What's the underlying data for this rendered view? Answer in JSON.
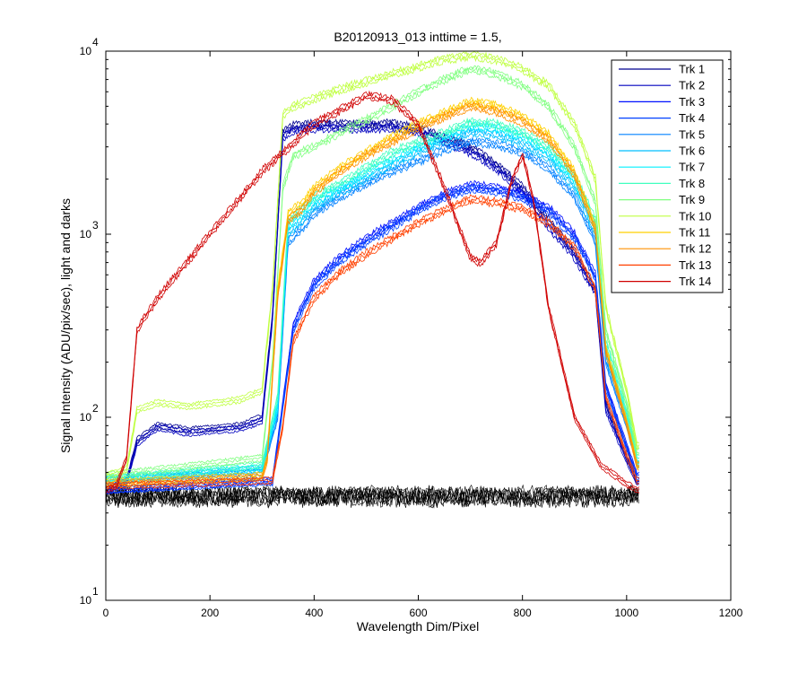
{
  "chart_data": {
    "type": "line",
    "title": "B20120913_013 inttime = 1.5,",
    "xlabel": "Wavelength Dim/Pixel",
    "ylabel": "Signal Intensity (ADU/pix/sec), light and darks",
    "xlim": [
      0,
      1200
    ],
    "ylim": [
      10,
      10000
    ],
    "yscale": "log",
    "x_ticks": [
      0,
      200,
      400,
      600,
      800,
      1000,
      1200
    ],
    "x_tick_labels": [
      "0",
      "200",
      "400",
      "600",
      "800",
      "1000",
      "1200"
    ],
    "y_ticks": [
      10,
      100,
      1000,
      10000
    ],
    "y_tick_bases": [
      "10",
      "10",
      "10",
      "10"
    ],
    "y_tick_exponents": [
      "1",
      "2",
      "3",
      "4"
    ],
    "legend_position": "top-right",
    "series": [
      {
        "name": "Trk 1",
        "color": "#00008f",
        "x": [
          0,
          40,
          60,
          100,
          160,
          260,
          300,
          320,
          340,
          360,
          400,
          500,
          550,
          600,
          650,
          700,
          750,
          800,
          850,
          900,
          940,
          960,
          1000,
          1020
        ],
        "y": [
          40,
          45,
          75,
          90,
          85,
          90,
          100,
          360,
          3600,
          3900,
          4000,
          4000,
          4000,
          3800,
          3400,
          3000,
          2400,
          1800,
          1200,
          800,
          500,
          120,
          60,
          45
        ]
      },
      {
        "name": "Trk 2",
        "color": "#0000bf",
        "x": [
          0,
          40,
          60,
          100,
          160,
          260,
          300,
          320,
          340,
          360,
          400,
          500,
          550,
          600,
          650,
          700,
          750,
          800,
          850,
          900,
          940,
          960,
          1000,
          1020
        ],
        "y": [
          40,
          44,
          72,
          88,
          82,
          87,
          96,
          340,
          3400,
          3700,
          3800,
          3800,
          3800,
          3600,
          3200,
          2800,
          2300,
          1700,
          1100,
          750,
          480,
          110,
          58,
          44
        ]
      },
      {
        "name": "Trk 3",
        "color": "#0010ff",
        "x": [
          0,
          300,
          320,
          340,
          360,
          400,
          450,
          500,
          550,
          600,
          650,
          700,
          750,
          800,
          850,
          900,
          940,
          960,
          1000,
          1020
        ],
        "y": [
          40,
          45,
          45,
          120,
          320,
          550,
          750,
          950,
          1150,
          1400,
          1650,
          1850,
          1800,
          1650,
          1400,
          1000,
          600,
          150,
          70,
          48
        ]
      },
      {
        "name": "Trk 4",
        "color": "#0040ff",
        "x": [
          0,
          300,
          320,
          340,
          360,
          400,
          450,
          500,
          550,
          600,
          650,
          700,
          750,
          800,
          850,
          900,
          940,
          960,
          1000,
          1020
        ],
        "y": [
          40,
          44,
          44,
          115,
          300,
          520,
          720,
          900,
          1100,
          1350,
          1600,
          1780,
          1720,
          1580,
          1340,
          950,
          580,
          145,
          68,
          47
        ]
      },
      {
        "name": "Trk 5",
        "color": "#0080ff",
        "x": [
          0,
          300,
          330,
          350,
          380,
          400,
          450,
          500,
          550,
          600,
          650,
          700,
          750,
          800,
          850,
          900,
          940,
          960,
          1000,
          1020
        ],
        "y": [
          45,
          50,
          100,
          900,
          1100,
          1300,
          1600,
          1900,
          2200,
          2500,
          2900,
          3200,
          3100,
          2800,
          2300,
          1600,
          900,
          200,
          90,
          55
        ]
      },
      {
        "name": "Trk 6",
        "color": "#00bfff",
        "x": [
          0,
          300,
          330,
          350,
          380,
          400,
          450,
          500,
          550,
          600,
          650,
          700,
          750,
          800,
          850,
          900,
          940,
          960,
          1000,
          1020
        ],
        "y": [
          45,
          52,
          110,
          1000,
          1200,
          1400,
          1700,
          2000,
          2400,
          2800,
          3200,
          3600,
          3500,
          3100,
          2600,
          1800,
          1000,
          220,
          95,
          56
        ]
      },
      {
        "name": "Trk 7",
        "color": "#00f0ff",
        "x": [
          0,
          300,
          330,
          350,
          380,
          400,
          450,
          500,
          550,
          600,
          650,
          700,
          750,
          800,
          850,
          900,
          940,
          960,
          1000,
          1020
        ],
        "y": [
          46,
          53,
          115,
          1100,
          1300,
          1500,
          1800,
          2150,
          2600,
          3000,
          3400,
          3900,
          3800,
          3400,
          2800,
          1950,
          1100,
          240,
          100,
          58
        ]
      },
      {
        "name": "Trk 8",
        "color": "#40ffbf",
        "x": [
          0,
          300,
          330,
          350,
          380,
          400,
          450,
          500,
          550,
          600,
          650,
          700,
          750,
          800,
          850,
          900,
          940,
          960,
          1000,
          1020
        ],
        "y": [
          46,
          55,
          130,
          1200,
          1400,
          1600,
          1900,
          2300,
          2800,
          3200,
          3600,
          4100,
          4000,
          3600,
          3000,
          2100,
          1200,
          260,
          110,
          60
        ]
      },
      {
        "name": "Trk 9",
        "color": "#80ff80",
        "x": [
          0,
          300,
          320,
          340,
          360,
          400,
          450,
          500,
          550,
          600,
          650,
          700,
          750,
          800,
          850,
          900,
          940,
          960,
          1000,
          1020
        ],
        "y": [
          48,
          60,
          200,
          1800,
          2700,
          3000,
          3600,
          4200,
          5000,
          6000,
          7000,
          8000,
          7500,
          6500,
          5000,
          3000,
          1500,
          300,
          120,
          65
        ]
      },
      {
        "name": "Trk 10",
        "color": "#bfff40",
        "x": [
          0,
          40,
          60,
          100,
          160,
          260,
          300,
          320,
          340,
          360,
          400,
          450,
          500,
          550,
          600,
          650,
          700,
          750,
          800,
          850,
          900,
          940,
          960,
          1000,
          1020
        ],
        "y": [
          48,
          52,
          110,
          120,
          115,
          125,
          140,
          500,
          4500,
          5000,
          5500,
          6200,
          6800,
          7500,
          8200,
          9000,
          9500,
          9000,
          8000,
          6500,
          4000,
          2000,
          400,
          140,
          70
        ]
      },
      {
        "name": "Trk 11",
        "color": "#ffd000",
        "x": [
          0,
          300,
          310,
          330,
          350,
          380,
          400,
          450,
          500,
          550,
          600,
          650,
          700,
          750,
          800,
          850,
          900,
          940,
          960,
          1000,
          1020
        ],
        "y": [
          44,
          48,
          60,
          500,
          1300,
          1500,
          1800,
          2300,
          2800,
          3400,
          4000,
          4600,
          5300,
          5000,
          4400,
          3500,
          2200,
          1100,
          240,
          95,
          55
        ]
      },
      {
        "name": "Trk 12",
        "color": "#ff9000",
        "x": [
          0,
          300,
          310,
          330,
          350,
          380,
          400,
          450,
          500,
          550,
          600,
          650,
          700,
          750,
          800,
          850,
          900,
          940,
          960,
          1000,
          1020
        ],
        "y": [
          43,
          47,
          58,
          450,
          1200,
          1400,
          1700,
          2200,
          2700,
          3200,
          3800,
          4400,
          5000,
          4700,
          4100,
          3300,
          2100,
          1050,
          230,
          92,
          54
        ]
      },
      {
        "name": "Trk 13",
        "color": "#ff4000",
        "x": [
          0,
          300,
          320,
          340,
          360,
          400,
          450,
          500,
          550,
          600,
          650,
          700,
          750,
          800,
          850,
          900,
          940,
          960,
          1000,
          1020
        ],
        "y": [
          42,
          45,
          45,
          90,
          260,
          450,
          620,
          780,
          950,
          1150,
          1350,
          1550,
          1500,
          1380,
          1150,
          850,
          500,
          130,
          62,
          45
        ]
      },
      {
        "name": "Trk 14",
        "color": "#d00000",
        "x": [
          0,
          20,
          40,
          60,
          100,
          200,
          300,
          400,
          500,
          550,
          600,
          650,
          700,
          720,
          750,
          780,
          800,
          820,
          850,
          900,
          950,
          1000,
          1020
        ],
        "y": [
          40,
          42,
          60,
          300,
          450,
          1000,
          2200,
          4000,
          5700,
          5400,
          4000,
          1800,
          750,
          700,
          900,
          2000,
          2700,
          1600,
          400,
          100,
          55,
          43,
          40
        ]
      }
    ],
    "dark_series": {
      "name": "darks",
      "color": "#000000",
      "y_range": [
        30,
        42
      ]
    }
  }
}
